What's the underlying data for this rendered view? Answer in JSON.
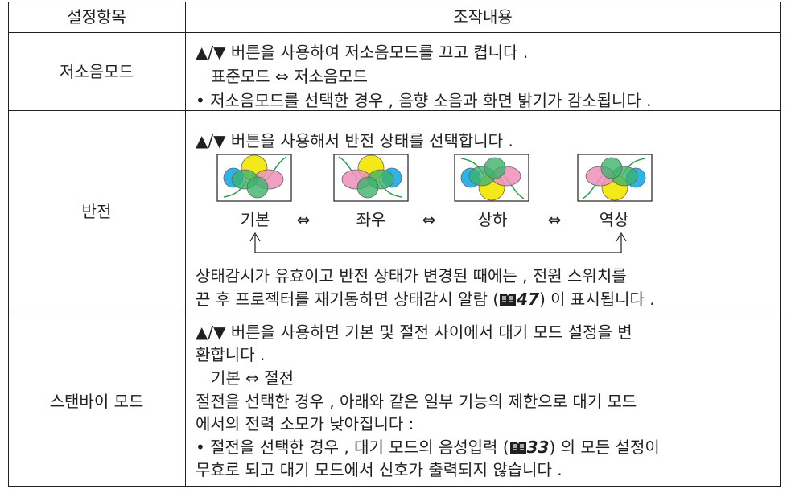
{
  "table": {
    "header": [
      "설정항목",
      "조작내용"
    ],
    "rows": [
      {
        "item": "저소음모드",
        "lines": [
          "▲/▼ 버튼을 사용하여 저소음모드를 끄고 켭니다 .",
          "표준모드 ⇔ 저소음모드",
          "• 저소음모드를 선택한 경우 , 음향 소음과 화면 밝기가 감소됩니다 ."
        ]
      },
      {
        "item": "반전",
        "lines": [
          "▲/▼ 버튼을 사용해서 반전 상태를 선택합니다 .",
          "상태감시가 유효이고 반전 상태가 변경된 때에는 , 전원 스위치를"
        ],
        "modes": [
          "기본",
          "좌우",
          "상하",
          "역상"
        ],
        "arrows": [
          "⇔",
          "⇔",
          "⇔"
        ],
        "ref_line": {
          "before": "끈 후 프로젝터를 재기동하면 상태감시 알람 (",
          "page": "47",
          "after": ") 이 표시됩니다 ."
        }
      },
      {
        "item": "스탠바이 모드",
        "lines": [
          "▲/▼ 버튼을 사용하면 기본 및 절전 사이에서 대기 모드 설정을 변",
          "환합니다 .",
          "기본 ⇔ 절전",
          "절전을 선택한 경우 , 아래와 같은 일부 기능의 제한으로 대기 모드",
          "에서의 전력 소모가 낮아집니다 :",
          "무효로 되고 대기 모드에서 신호가 출력되지 않습니다 ."
        ],
        "ref_line": {
          "before": "• 절전을 선택한 경우 , 대기 모드의 음성입력 (",
          "page": "33",
          "after": ") 의 모든 설정이"
        }
      }
    ]
  }
}
